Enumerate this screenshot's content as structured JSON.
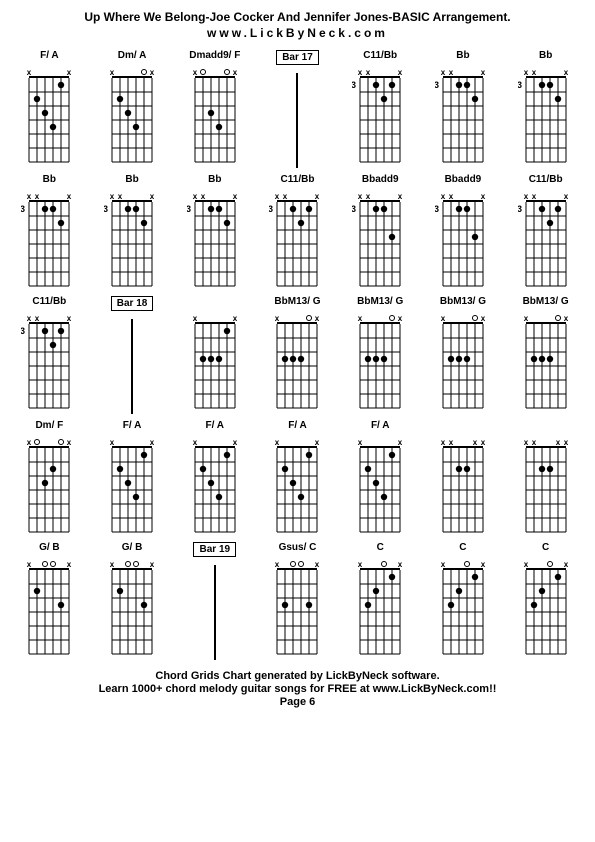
{
  "title": "Up Where We Belong-Joe Cocker And Jennifer Jones-BASIC Arrangement.",
  "subtitle": "www.LickByNeck.com",
  "footer_line1": "Chord Grids Chart generated by LickByNeck software.",
  "footer_line2": "Learn 1000+ chord melody guitar songs for FREE at www.LickByNeck.com!!",
  "footer_page": "Page 6",
  "style": {
    "background": "#ffffff",
    "text_color": "#000000",
    "line_color": "#000000",
    "dot_color": "#000000",
    "muted_mark": "x",
    "open_mark": "o",
    "strings": 6,
    "frets": 6,
    "diagram_width": 56,
    "diagram_height": 105
  },
  "cells": [
    {
      "type": "chord",
      "label": "F/ A",
      "fret": null,
      "muted": [
        0,
        5
      ],
      "open": [],
      "dots": [
        [
          1,
          2
        ],
        [
          2,
          3
        ],
        [
          3,
          4
        ],
        [
          4,
          1
        ]
      ],
      "dashLeft": true
    },
    {
      "type": "chord",
      "label": "Dm/ A",
      "fret": null,
      "muted": [
        0,
        5
      ],
      "open": [
        4
      ],
      "dots": [
        [
          1,
          2
        ],
        [
          2,
          3
        ],
        [
          3,
          4
        ]
      ]
    },
    {
      "type": "chord",
      "label": "Dmadd9/ F",
      "fret": null,
      "muted": [
        0,
        5
      ],
      "open": [
        1,
        4
      ],
      "dots": [
        [
          2,
          3
        ],
        [
          3,
          4
        ]
      ]
    },
    {
      "type": "bar",
      "label": "Bar 17"
    },
    {
      "type": "chord",
      "label": "C11/Bb",
      "fret": "3",
      "muted": [
        0,
        1,
        5
      ],
      "open": [],
      "dots": [
        [
          2,
          1
        ],
        [
          3,
          2
        ],
        [
          4,
          1
        ]
      ]
    },
    {
      "type": "chord",
      "label": "Bb",
      "fret": "3",
      "muted": [
        0,
        1,
        5
      ],
      "open": [],
      "dots": [
        [
          2,
          1
        ],
        [
          3,
          1
        ],
        [
          4,
          2
        ]
      ]
    },
    {
      "type": "chord",
      "label": "Bb",
      "fret": "3",
      "muted": [
        0,
        1,
        5
      ],
      "open": [],
      "dots": [
        [
          2,
          1
        ],
        [
          3,
          1
        ],
        [
          4,
          2
        ]
      ]
    },
    {
      "type": "chord",
      "label": "Bb",
      "fret": "3",
      "muted": [
        0,
        1,
        5
      ],
      "open": [],
      "dots": [
        [
          2,
          1
        ],
        [
          3,
          1
        ],
        [
          4,
          2
        ]
      ],
      "dashLeft": true
    },
    {
      "type": "chord",
      "label": "Bb",
      "fret": "3",
      "muted": [
        0,
        1,
        5
      ],
      "open": [],
      "dots": [
        [
          2,
          1
        ],
        [
          3,
          1
        ],
        [
          4,
          2
        ]
      ]
    },
    {
      "type": "chord",
      "label": "Bb",
      "fret": "3",
      "muted": [
        0,
        1,
        5
      ],
      "open": [],
      "dots": [
        [
          2,
          1
        ],
        [
          3,
          1
        ],
        [
          4,
          2
        ]
      ]
    },
    {
      "type": "chord",
      "label": "C11/Bb",
      "fret": "3",
      "muted": [
        0,
        1,
        5
      ],
      "open": [],
      "dots": [
        [
          2,
          1
        ],
        [
          3,
          2
        ],
        [
          4,
          1
        ]
      ]
    },
    {
      "type": "chord",
      "label": "Bbadd9",
      "fret": "3",
      "muted": [
        0,
        1,
        5
      ],
      "open": [],
      "dots": [
        [
          2,
          1
        ],
        [
          3,
          1
        ],
        [
          4,
          3
        ]
      ],
      "dashRight": true
    },
    {
      "type": "chord",
      "label": "Bbadd9",
      "fret": "3",
      "muted": [
        0,
        1,
        5
      ],
      "open": [],
      "dots": [
        [
          2,
          1
        ],
        [
          3,
          1
        ],
        [
          4,
          3
        ]
      ]
    },
    {
      "type": "chord",
      "label": "C11/Bb",
      "fret": "3",
      "muted": [
        0,
        1,
        5
      ],
      "open": [],
      "dots": [
        [
          2,
          1
        ],
        [
          3,
          2
        ],
        [
          4,
          1
        ]
      ]
    },
    {
      "type": "chord",
      "label": "C11/Bb",
      "fret": "3",
      "muted": [
        0,
        1,
        5
      ],
      "open": [],
      "dots": [
        [
          2,
          1
        ],
        [
          3,
          2
        ],
        [
          4,
          1
        ]
      ]
    },
    {
      "type": "bar",
      "label": "Bar 18"
    },
    {
      "type": "chord",
      "label": "",
      "fret": null,
      "muted": [
        0,
        5
      ],
      "open": [],
      "dots": [
        [
          1,
          3
        ],
        [
          2,
          3
        ],
        [
          3,
          3
        ],
        [
          4,
          1
        ]
      ]
    },
    {
      "type": "chord",
      "label": "BbM13/ G",
      "fret": null,
      "muted": [
        0,
        5
      ],
      "open": [
        4
      ],
      "dots": [
        [
          1,
          3
        ],
        [
          2,
          3
        ],
        [
          3,
          3
        ]
      ]
    },
    {
      "type": "chord",
      "label": "BbM13/ G",
      "fret": null,
      "muted": [
        0,
        5
      ],
      "open": [
        4
      ],
      "dots": [
        [
          1,
          3
        ],
        [
          2,
          3
        ],
        [
          3,
          3
        ]
      ],
      "dashRight": true
    },
    {
      "type": "chord",
      "label": "BbM13/ G",
      "fret": null,
      "muted": [
        0,
        5
      ],
      "open": [
        4
      ],
      "dots": [
        [
          1,
          3
        ],
        [
          2,
          3
        ],
        [
          3,
          3
        ]
      ]
    },
    {
      "type": "chord",
      "label": "BbM13/ G",
      "fret": null,
      "muted": [
        0,
        5
      ],
      "open": [
        4
      ],
      "dots": [
        [
          1,
          3
        ],
        [
          2,
          3
        ],
        [
          3,
          3
        ]
      ]
    },
    {
      "type": "chord",
      "label": "Dm/ F",
      "fret": null,
      "muted": [
        0,
        5
      ],
      "open": [
        1,
        4
      ],
      "dots": [
        [
          2,
          3
        ],
        [
          3,
          2
        ]
      ]
    },
    {
      "type": "chord",
      "label": "F/ A",
      "fret": null,
      "muted": [
        0,
        5
      ],
      "open": [],
      "dots": [
        [
          1,
          2
        ],
        [
          2,
          3
        ],
        [
          3,
          4
        ],
        [
          4,
          1
        ]
      ],
      "dashRight": true
    },
    {
      "type": "chord",
      "label": "F/ A",
      "fret": null,
      "muted": [
        0,
        5
      ],
      "open": [],
      "dots": [
        [
          1,
          2
        ],
        [
          2,
          3
        ],
        [
          3,
          4
        ],
        [
          4,
          1
        ]
      ]
    },
    {
      "type": "chord",
      "label": "F/ A",
      "fret": null,
      "muted": [
        0,
        5
      ],
      "open": [],
      "dots": [
        [
          1,
          2
        ],
        [
          2,
          3
        ],
        [
          3,
          4
        ],
        [
          4,
          1
        ]
      ]
    },
    {
      "type": "chord",
      "label": "F/ A",
      "fret": null,
      "muted": [
        0,
        5
      ],
      "open": [],
      "dots": [
        [
          1,
          2
        ],
        [
          2,
          3
        ],
        [
          3,
          4
        ],
        [
          4,
          1
        ]
      ]
    },
    {
      "type": "chord",
      "label": "",
      "fret": null,
      "muted": [
        0,
        1,
        4,
        5
      ],
      "open": [],
      "dots": [
        [
          2,
          2
        ],
        [
          3,
          2
        ]
      ],
      "dashRight": true
    },
    {
      "type": "chord",
      "label": "",
      "fret": null,
      "muted": [
        0,
        1,
        4,
        5
      ],
      "open": [],
      "dots": [
        [
          2,
          2
        ],
        [
          3,
          2
        ]
      ]
    },
    {
      "type": "chord",
      "label": "G/ B",
      "fret": null,
      "muted": [
        0,
        5
      ],
      "open": [
        2,
        3
      ],
      "dots": [
        [
          1,
          2
        ],
        [
          4,
          3
        ]
      ]
    },
    {
      "type": "chord",
      "label": "G/ B",
      "fret": null,
      "muted": [
        0,
        5
      ],
      "open": [
        2,
        3
      ],
      "dots": [
        [
          1,
          2
        ],
        [
          4,
          3
        ]
      ]
    },
    {
      "type": "bar",
      "label": "Bar 19"
    },
    {
      "type": "chord",
      "label": "Gsus/ C",
      "fret": null,
      "muted": [
        0,
        5
      ],
      "open": [
        2,
        3
      ],
      "dots": [
        [
          1,
          3
        ],
        [
          4,
          3
        ]
      ]
    },
    {
      "type": "chord",
      "label": "C",
      "fret": null,
      "muted": [
        0,
        5
      ],
      "open": [
        3
      ],
      "dots": [
        [
          1,
          3
        ],
        [
          2,
          2
        ],
        [
          4,
          1
        ]
      ]
    },
    {
      "type": "chord",
      "label": "C",
      "fret": null,
      "muted": [
        0,
        5
      ],
      "open": [
        3
      ],
      "dots": [
        [
          1,
          3
        ],
        [
          2,
          2
        ],
        [
          4,
          1
        ]
      ],
      "dashRight": true
    },
    {
      "type": "chord",
      "label": "C",
      "fret": null,
      "muted": [
        0,
        5
      ],
      "open": [
        3
      ],
      "dots": [
        [
          1,
          3
        ],
        [
          2,
          2
        ],
        [
          4,
          1
        ]
      ]
    }
  ]
}
